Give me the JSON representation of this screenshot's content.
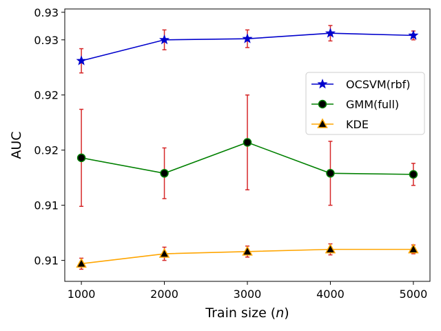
{
  "chart_data": {
    "type": "line",
    "title": "",
    "xlabel": "Train size (",
    "xlabel_var": "n",
    "xlabel_end": ")",
    "ylabel": "AUC",
    "x": [
      1000,
      2000,
      3000,
      4000,
      5000
    ],
    "xlim": [
      800,
      5200
    ],
    "ylim": [
      0.9056,
      0.9303
    ],
    "xticks": [
      1000,
      2000,
      3000,
      4000,
      5000
    ],
    "yticks": [
      0.9075,
      0.9125,
      0.9175,
      0.9225,
      0.9275,
      0.93
    ],
    "ytick_labels": [
      "0.91",
      "0.91",
      "0.92",
      "0.92",
      "0.93",
      "0.93"
    ],
    "grid": false,
    "legend_position": "center-right",
    "errorbar_color": "#d62728",
    "series": [
      {
        "name": "OCSVM(rbf)",
        "color": "#0000cc",
        "marker": "star",
        "marker_face": "#0000cc",
        "values": [
          0.9256,
          0.9275,
          0.9276,
          0.9281,
          0.9279
        ],
        "errors": [
          0.0011,
          0.0009,
          0.0008,
          0.0007,
          0.0004
        ]
      },
      {
        "name": "GMM(full)",
        "color": "#008000",
        "marker": "circle",
        "marker_face": "#000000",
        "values": [
          0.9168,
          0.9154,
          0.9182,
          0.9154,
          0.9153
        ],
        "errors": [
          0.0044,
          0.0023,
          0.0043,
          0.0029,
          0.001
        ]
      },
      {
        "name": "KDE",
        "color": "#ffa500",
        "marker": "triangle",
        "marker_face": "#000000",
        "values": [
          0.9072,
          0.9081,
          0.9083,
          0.9085,
          0.9085
        ],
        "errors": [
          0.0005,
          0.0006,
          0.0005,
          0.0005,
          0.0004
        ]
      }
    ]
  }
}
